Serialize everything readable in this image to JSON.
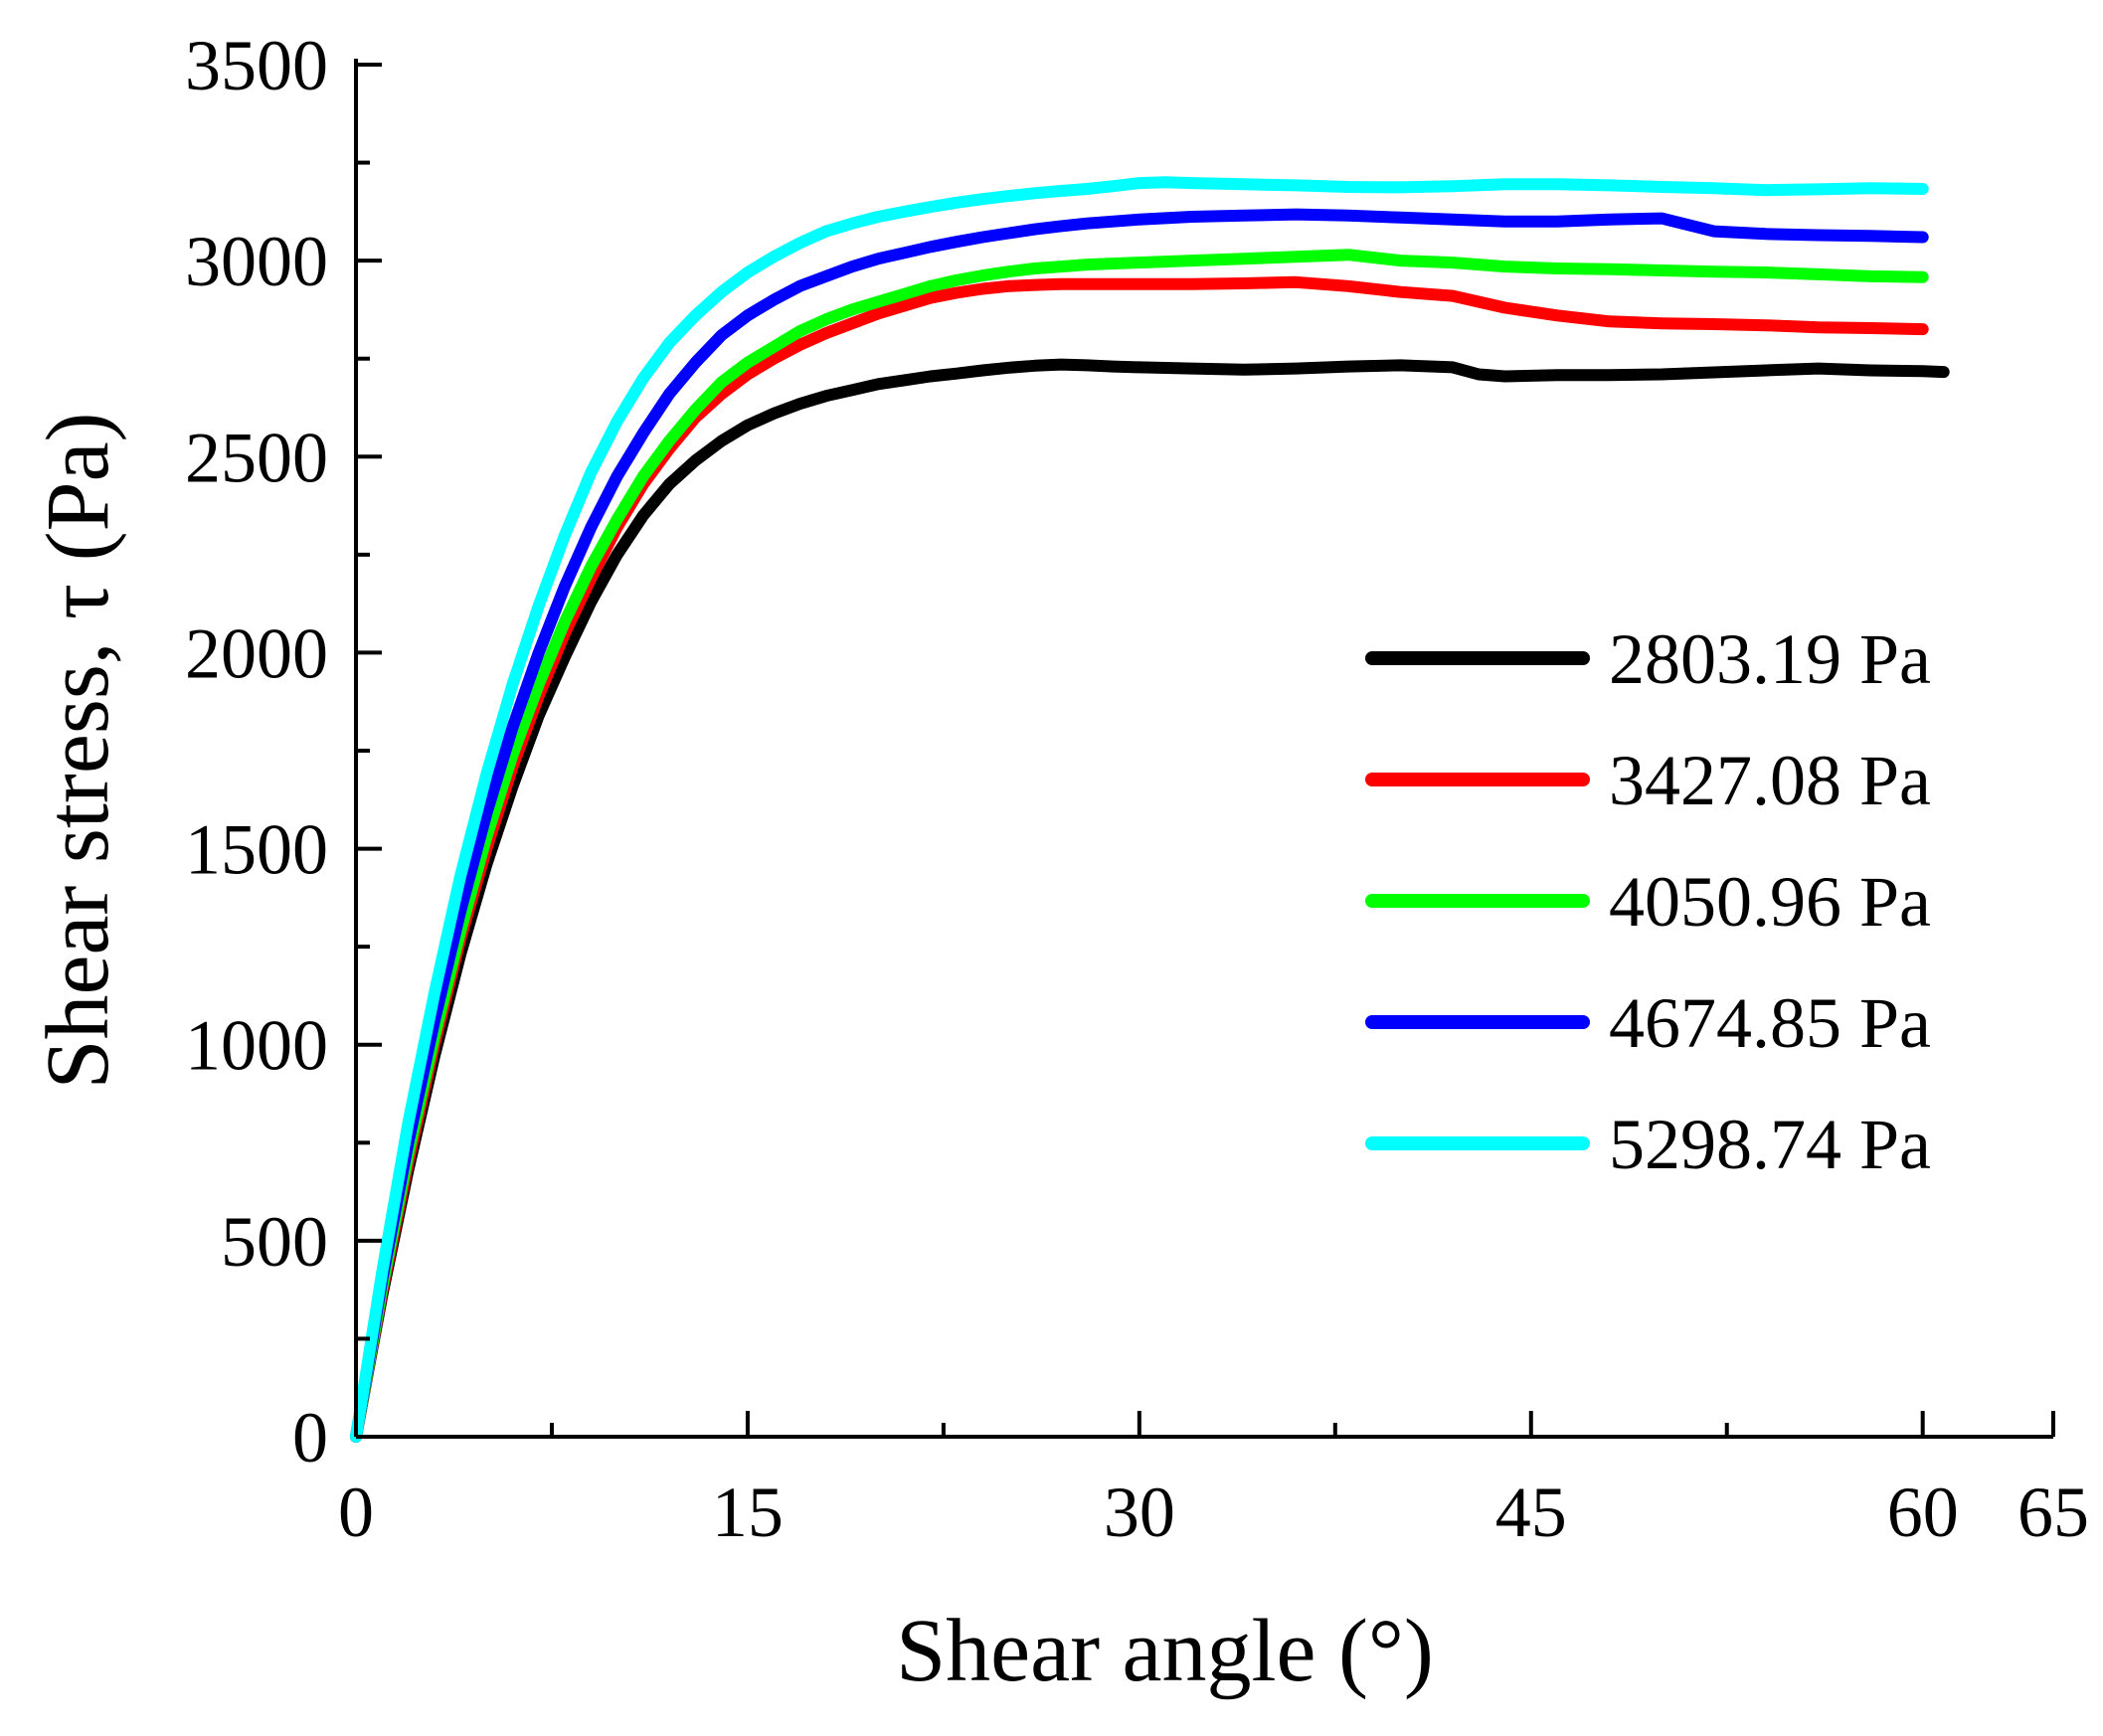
{
  "chart_data": {
    "type": "line",
    "title": "",
    "xlabel": "Shear angle (°)",
    "ylabel": "Shear stress, τ (Pa)",
    "xlim": [
      0,
      65
    ],
    "ylim": [
      0,
      3500
    ],
    "xticks": [
      0,
      15,
      30,
      45,
      60,
      65
    ],
    "xtick_labels": [
      "0",
      "15",
      "30",
      "45",
      "60",
      "65"
    ],
    "yticks": [
      0,
      500,
      1000,
      1500,
      2000,
      2500,
      3000,
      3500
    ],
    "ytick_labels": [
      "0",
      "500",
      "1000",
      "1500",
      "2000",
      "2500",
      "3000",
      "3500"
    ],
    "grid": false,
    "legend_position": "right",
    "series": [
      {
        "name": "2803.19 Pa",
        "color": "#000000",
        "x": [
          0,
          1,
          2,
          3,
          4,
          5,
          6,
          7,
          8,
          9,
          10,
          11,
          12,
          13,
          14,
          15,
          16,
          17,
          18,
          19,
          20,
          21,
          22,
          23,
          24,
          25,
          26,
          27,
          28,
          29,
          30,
          32,
          34,
          36,
          38,
          40,
          42,
          43,
          44,
          46,
          48,
          50,
          52,
          54,
          56,
          58,
          60,
          60.8
        ],
        "y": [
          0,
          360,
          680,
          970,
          1230,
          1460,
          1660,
          1840,
          1990,
          2130,
          2250,
          2350,
          2430,
          2490,
          2540,
          2580,
          2610,
          2635,
          2655,
          2670,
          2685,
          2695,
          2705,
          2712,
          2720,
          2727,
          2732,
          2735,
          2733,
          2730,
          2728,
          2725,
          2722,
          2725,
          2730,
          2733,
          2728,
          2710,
          2705,
          2708,
          2708,
          2710,
          2715,
          2720,
          2725,
          2720,
          2718,
          2716
        ]
      },
      {
        "name": "3427.08 Pa",
        "color": "#ff0000",
        "x": [
          0,
          1,
          2,
          3,
          4,
          5,
          6,
          7,
          8,
          9,
          10,
          11,
          12,
          13,
          14,
          15,
          16,
          17,
          18,
          19,
          20,
          21,
          22,
          23,
          24,
          25,
          26,
          27,
          28,
          30,
          32,
          34,
          36,
          38,
          40,
          42,
          44,
          46,
          48,
          50,
          52,
          54,
          56,
          58,
          60
        ],
        "y": [
          0,
          370,
          700,
          1000,
          1270,
          1500,
          1710,
          1890,
          2050,
          2190,
          2320,
          2430,
          2520,
          2600,
          2660,
          2710,
          2750,
          2785,
          2815,
          2840,
          2865,
          2885,
          2905,
          2918,
          2928,
          2935,
          2938,
          2940,
          2940,
          2940,
          2940,
          2942,
          2945,
          2935,
          2920,
          2910,
          2880,
          2860,
          2845,
          2840,
          2838,
          2835,
          2830,
          2828,
          2825
        ]
      },
      {
        "name": "4050.96 Pa",
        "color": "#00ff00",
        "x": [
          0,
          1,
          2,
          3,
          4,
          5,
          6,
          7,
          8,
          9,
          10,
          11,
          12,
          13,
          14,
          15,
          16,
          17,
          18,
          19,
          20,
          21,
          22,
          23,
          24,
          25,
          26,
          27,
          28,
          30,
          32,
          34,
          36,
          38,
          40,
          42,
          44,
          46,
          48,
          50,
          52,
          54,
          56,
          58,
          60
        ],
        "y": [
          0,
          380,
          720,
          1020,
          1290,
          1530,
          1740,
          1920,
          2080,
          2220,
          2340,
          2450,
          2540,
          2620,
          2690,
          2740,
          2780,
          2820,
          2850,
          2875,
          2895,
          2915,
          2935,
          2950,
          2962,
          2972,
          2980,
          2985,
          2990,
          2995,
          3000,
          3005,
          3010,
          3015,
          3000,
          2995,
          2985,
          2980,
          2978,
          2975,
          2972,
          2970,
          2965,
          2960,
          2958
        ]
      },
      {
        "name": "4674.85 Pa",
        "color": "#0000ff",
        "x": [
          0,
          1,
          2,
          3,
          4,
          5,
          6,
          7,
          8,
          9,
          10,
          11,
          12,
          13,
          14,
          15,
          16,
          17,
          18,
          19,
          20,
          21,
          22,
          23,
          24,
          25,
          26,
          27,
          28,
          30,
          32,
          34,
          36,
          38,
          40,
          42,
          44,
          46,
          48,
          50,
          52,
          54,
          56,
          58,
          60
        ],
        "y": [
          0,
          400,
          750,
          1060,
          1340,
          1590,
          1810,
          2000,
          2170,
          2320,
          2450,
          2560,
          2660,
          2740,
          2810,
          2860,
          2900,
          2935,
          2960,
          2985,
          3005,
          3020,
          3035,
          3048,
          3060,
          3070,
          3080,
          3088,
          3095,
          3105,
          3112,
          3115,
          3118,
          3115,
          3110,
          3105,
          3100,
          3100,
          3105,
          3108,
          3075,
          3068,
          3065,
          3063,
          3060
        ]
      },
      {
        "name": "5298.74 Pa",
        "color": "#00ffff",
        "x": [
          0,
          1,
          2,
          3,
          4,
          5,
          6,
          7,
          8,
          9,
          10,
          11,
          12,
          13,
          14,
          15,
          16,
          17,
          18,
          19,
          20,
          21,
          22,
          23,
          24,
          25,
          26,
          27,
          28,
          29,
          30,
          31,
          32,
          34,
          36,
          38,
          40,
          42,
          44,
          46,
          48,
          50,
          52,
          54,
          56,
          58,
          60
        ],
        "y": [
          0,
          420,
          800,
          1130,
          1430,
          1690,
          1920,
          2120,
          2300,
          2460,
          2590,
          2700,
          2790,
          2860,
          2920,
          2970,
          3010,
          3045,
          3075,
          3095,
          3112,
          3125,
          3137,
          3148,
          3157,
          3165,
          3172,
          3178,
          3183,
          3190,
          3198,
          3200,
          3198,
          3195,
          3192,
          3188,
          3187,
          3190,
          3195,
          3195,
          3192,
          3188,
          3185,
          3180,
          3182,
          3185,
          3183
        ]
      }
    ]
  }
}
